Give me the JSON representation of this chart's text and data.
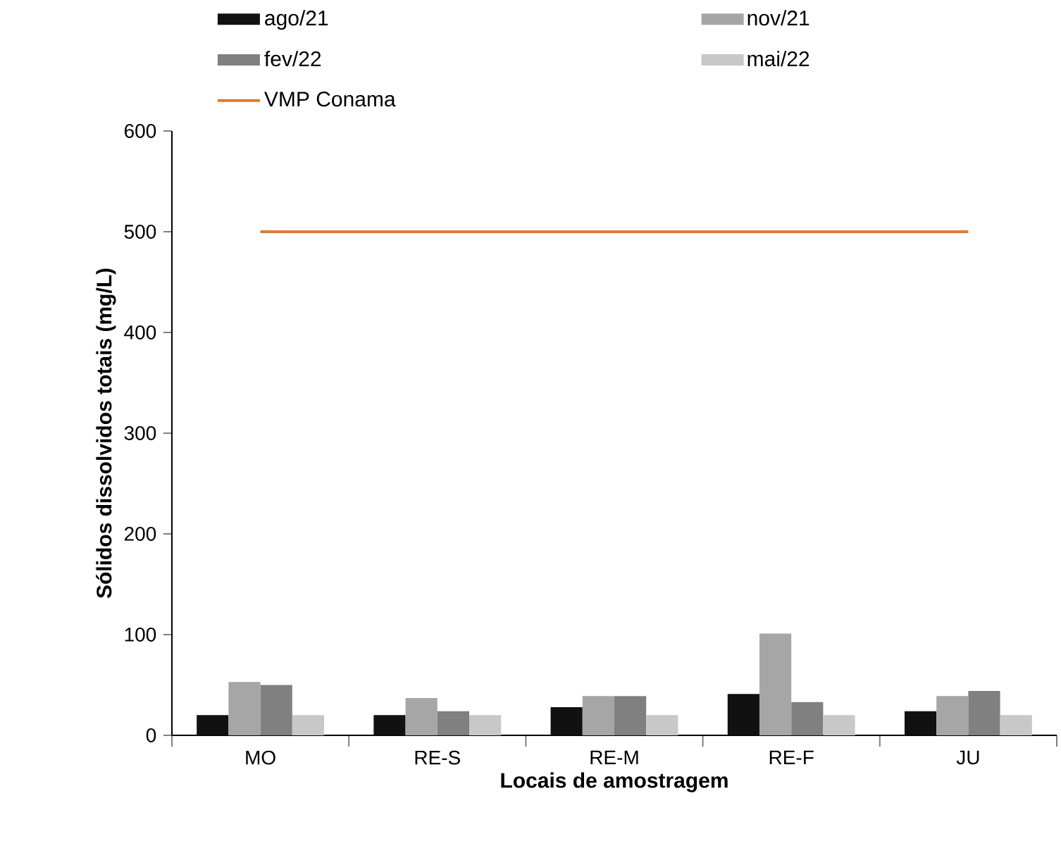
{
  "chart_data": {
    "type": "bar",
    "xlabel": "Locais de amostragem",
    "ylabel": "Sólidos dissolvidos totais (mg/L)",
    "categories": [
      "MO",
      "RE-S",
      "RE-M",
      "RE-F",
      "JU"
    ],
    "series": [
      {
        "name": "ago/21",
        "color": "#111111",
        "values": [
          20,
          20,
          28,
          41,
          24
        ]
      },
      {
        "name": "nov/21",
        "color": "#a6a6a6",
        "values": [
          53,
          37,
          39,
          101,
          39
        ]
      },
      {
        "name": "fev/22",
        "color": "#808080",
        "values": [
          50,
          24,
          39,
          33,
          44
        ]
      },
      {
        "name": "mai/22",
        "color": "#c8c8c8",
        "values": [
          20,
          20,
          20,
          20,
          20
        ]
      },
      {
        "name": "VMP Conama",
        "type": "line",
        "color": "#dd7a35",
        "values": [
          500,
          500,
          500,
          500,
          500
        ]
      }
    ],
    "ylim": [
      0,
      600
    ],
    "yticks": [
      0,
      100,
      200,
      300,
      400,
      500,
      600
    ],
    "legend": "top",
    "grid": false
  }
}
